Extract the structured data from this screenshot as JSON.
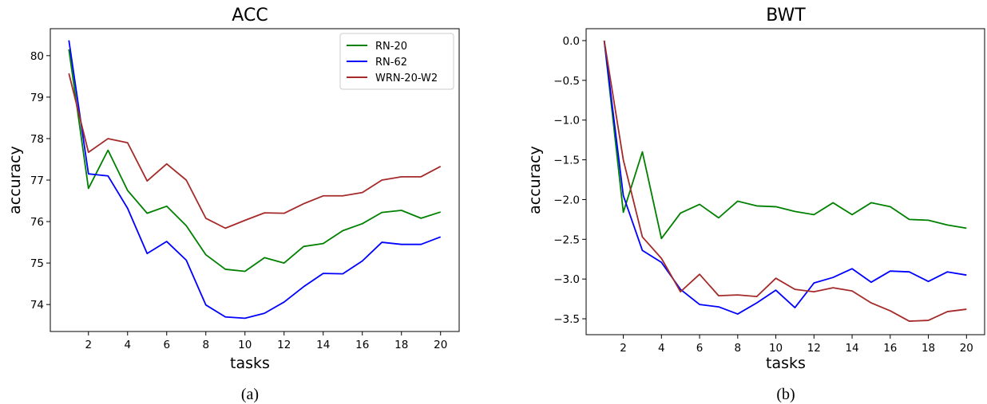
{
  "chart_data": [
    {
      "type": "line",
      "title": "ACC",
      "xlabel": "tasks",
      "ylabel": "accuracy",
      "caption": "(a)",
      "x": [
        1,
        2,
        3,
        4,
        5,
        6,
        7,
        8,
        9,
        10,
        11,
        12,
        13,
        14,
        15,
        16,
        17,
        18,
        19,
        20
      ],
      "xticks": [
        2,
        4,
        6,
        8,
        10,
        12,
        14,
        16,
        18,
        20
      ],
      "yticks": [
        74,
        75,
        76,
        77,
        78,
        79,
        80
      ],
      "xlim": [
        0.05,
        20.95
      ],
      "ylim": [
        73.35,
        80.65
      ],
      "legend": "top-right",
      "series": [
        {
          "name": "RN-20",
          "color": "#008000",
          "values": [
            80.15,
            76.8,
            77.72,
            76.75,
            76.2,
            76.37,
            75.9,
            75.2,
            74.85,
            74.8,
            75.13,
            75.0,
            75.4,
            75.47,
            75.78,
            75.95,
            76.22,
            76.27,
            76.08,
            76.23
          ]
        },
        {
          "name": "RN-62",
          "color": "#0000ff",
          "values": [
            80.37,
            77.15,
            77.1,
            76.32,
            75.23,
            75.52,
            75.07,
            73.99,
            73.7,
            73.67,
            73.79,
            74.06,
            74.43,
            74.75,
            74.74,
            75.05,
            75.5,
            75.45,
            75.45,
            75.63
          ]
        },
        {
          "name": "WRN-20-W2",
          "color": "#a52a2a",
          "values": [
            79.57,
            77.67,
            78.0,
            77.9,
            76.98,
            77.39,
            77.0,
            76.08,
            75.84,
            76.03,
            76.21,
            76.2,
            76.43,
            76.62,
            76.62,
            76.7,
            77.0,
            77.08,
            77.08,
            77.33
          ]
        }
      ]
    },
    {
      "type": "line",
      "title": "BWT",
      "xlabel": "tasks",
      "ylabel": "accuracy",
      "caption": "(b)",
      "x": [
        1,
        2,
        3,
        4,
        5,
        6,
        7,
        8,
        9,
        10,
        11,
        12,
        13,
        14,
        15,
        16,
        17,
        18,
        19,
        20
      ],
      "xticks": [
        2,
        4,
        6,
        8,
        10,
        12,
        14,
        16,
        18,
        20
      ],
      "yticks": [
        0.0,
        -0.5,
        -1.0,
        -1.5,
        -2.0,
        -2.5,
        -3.0,
        -3.5
      ],
      "ytick_labels": [
        "0.0",
        "−0.5",
        "−1.0",
        "−1.5",
        "−2.0",
        "−2.5",
        "−3.0",
        "−3.5"
      ],
      "xlim": [
        0.05,
        20.95
      ],
      "ylim": [
        -3.7,
        0.15
      ],
      "series": [
        {
          "name": "RN-20",
          "color": "#008000",
          "values": [
            0.0,
            -2.16,
            -1.4,
            -2.49,
            -2.17,
            -2.06,
            -2.23,
            -2.02,
            -2.08,
            -2.09,
            -2.15,
            -2.19,
            -2.04,
            -2.19,
            -2.04,
            -2.09,
            -2.25,
            -2.26,
            -2.32,
            -2.36
          ]
        },
        {
          "name": "RN-62",
          "color": "#0000ff",
          "values": [
            0.0,
            -1.95,
            -2.64,
            -2.79,
            -3.13,
            -3.32,
            -3.35,
            -3.44,
            -3.3,
            -3.14,
            -3.36,
            -3.05,
            -2.98,
            -2.87,
            -3.04,
            -2.9,
            -2.91,
            -3.03,
            -2.91,
            -2.95
          ]
        },
        {
          "name": "WRN-20-W2",
          "color": "#a52a2a",
          "values": [
            0.0,
            -1.5,
            -2.47,
            -2.74,
            -3.16,
            -2.94,
            -3.21,
            -3.2,
            -3.22,
            -2.99,
            -3.13,
            -3.16,
            -3.11,
            -3.15,
            -3.3,
            -3.4,
            -3.53,
            -3.52,
            -3.41,
            -3.38
          ]
        }
      ]
    }
  ]
}
